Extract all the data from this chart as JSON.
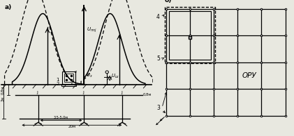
{
  "bg_color": "#e8e8e0",
  "panel_a_label": "а)",
  "panel_b_label": "б)",
  "label_oru": "ОРУ",
  "label_4": "4",
  "label_5": "5",
  "label_3b": "3"
}
